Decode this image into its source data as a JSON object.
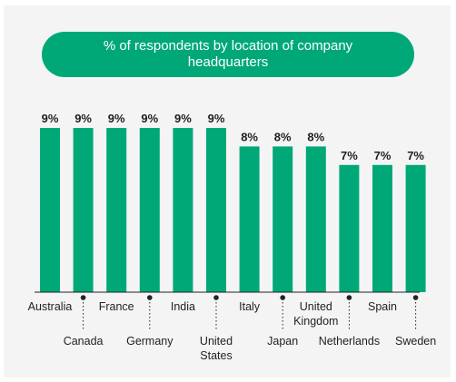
{
  "chart_data": {
    "type": "bar",
    "title": "% of respondents by location of company headquarters",
    "categories": [
      "Australia",
      "Canada",
      "France",
      "Germany",
      "India",
      "United States",
      "Italy",
      "Japan",
      "United Kingdom",
      "Netherlands",
      "Spain",
      "Sweden"
    ],
    "category_lines": [
      [
        "Australia"
      ],
      [
        "Canada"
      ],
      [
        "France"
      ],
      [
        "Germany"
      ],
      [
        "India"
      ],
      [
        "United",
        "States"
      ],
      [
        "Italy"
      ],
      [
        "Japan"
      ],
      [
        "United",
        "Kingdom"
      ],
      [
        "Netherlands"
      ],
      [
        "Spain"
      ],
      [
        "Sweden"
      ]
    ],
    "values": [
      9,
      9,
      9,
      9,
      9,
      9,
      8,
      8,
      8,
      7,
      7,
      7
    ],
    "value_labels": [
      "9%",
      "9%",
      "9%",
      "9%",
      "9%",
      "9%",
      "8%",
      "8%",
      "8%",
      "7%",
      "7%",
      "7%"
    ],
    "unit": "%",
    "ylim": [
      0,
      9
    ],
    "grid": false,
    "colors": {
      "bar": "#00a878",
      "pill": "#00a878",
      "pill_text": "#ffffff",
      "text": "#1f1f1f",
      "background": "#f4f4f5"
    }
  }
}
